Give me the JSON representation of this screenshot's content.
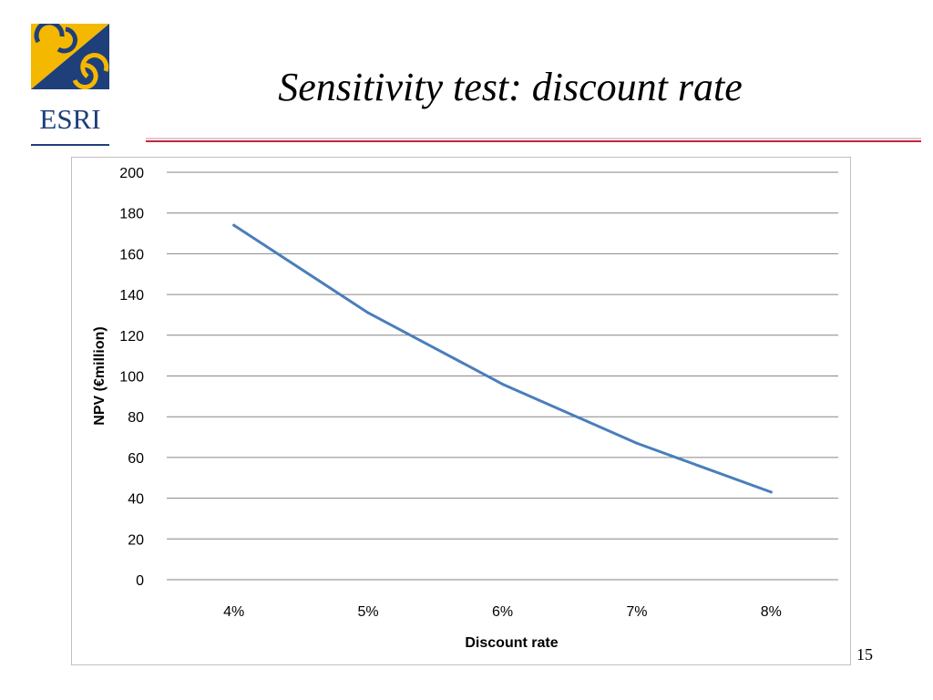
{
  "slide": {
    "title": "Sensitivity test: discount rate",
    "page_number": "15"
  },
  "logo": {
    "text": "ESRI",
    "colors": {
      "blue": "#1f3f7a",
      "gold": "#f5b800"
    }
  },
  "title_rule_color": "#c0283a",
  "chart_data": {
    "type": "line",
    "categories": [
      "4%",
      "5%",
      "6%",
      "7%",
      "8%"
    ],
    "series": [
      {
        "values": [
          174,
          131,
          96,
          67,
          43
        ],
        "color": "#4a7ebb"
      }
    ],
    "xlabel": "Discount rate",
    "ylabel": "NPV (€million)",
    "ylim": [
      0,
      200
    ],
    "yticks": [
      "0",
      "20",
      "40",
      "60",
      "80",
      "100",
      "120",
      "140",
      "160",
      "180",
      "200"
    ],
    "grid": true,
    "legend": "none"
  }
}
